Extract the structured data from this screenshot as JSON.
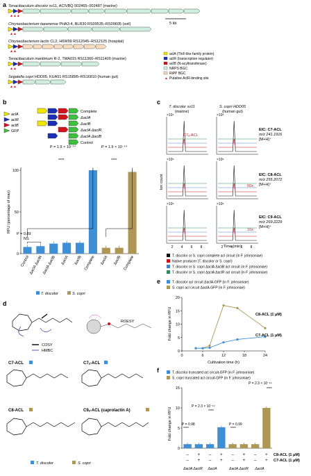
{
  "panel_labels": {
    "a": "a",
    "b": "b",
    "c": "c",
    "d": "d",
    "e": "e",
    "f": "f"
  },
  "panel_a": {
    "strains": [
      {
        "name": "Tenacibaculum discolor",
        "rest": " sv11, ACIVBQ 002465–002487 (marine)"
      },
      {
        "name": "Chryseobacterium taeanense",
        "rest": " PHA3-4, BLR30 RS09535–RS09605 (soil)"
      },
      {
        "name": "Chryseobacterium lactis",
        "rest": " CL2, H6W99 RS12045–RS12125 (hospital)"
      },
      {
        "name": "Tenacibaculum maritimum",
        "rest": " R-2, TMA015 RS11360–RS11400 (marine)"
      },
      {
        "name": "Segatella copri",
        "rest": " HDD05, KUA51 RS15895–RS16810 (human gut)"
      }
    ],
    "scale": "5 kb",
    "legend": [
      {
        "text": "aclA (ThiF-like family protein)",
        "color": "#f2e600"
      },
      {
        "text": "aclR (transcription regulator)",
        "color": "#1a2fb5"
      },
      {
        "text": "aclB (N-acyltransferase)",
        "color": "#d0141e"
      },
      {
        "text": "NRPS BGC",
        "color": "#cfeedd"
      },
      {
        "text": "RiPP BGC",
        "color": "#f6dcc0"
      },
      {
        "text": "Putative AclR-binding site",
        "color": "#d0141e"
      }
    ]
  },
  "panel_b": {
    "gene_legend": [
      "aclA",
      "aclR",
      "aclB",
      "GFP"
    ],
    "constructs": [
      "Complete",
      "ΔaclA",
      "ΔaclB",
      "ΔaclA ΔaclR",
      "ΔaclA ΔaclB",
      "Control"
    ],
    "ylabel": "RFU (percentage of max)",
    "p1": "P = 1.9 × 10⁻¹⁴",
    "p2": "P = 1.9 × 10⁻¹⁴",
    "p3": "P = 0.89",
    "sig": "****",
    "ns": "NS",
    "series": [
      "T. discolor",
      "S. copri"
    ],
    "chart_data": {
      "type": "bar",
      "categories": [
        "Control",
        "ΔaclA ΔaclR",
        "ΔaclA ΔaclB",
        "ΔaclA",
        "ΔaclB",
        "Complete",
        "ΔaclA",
        "ΔaclB",
        "Complete"
      ],
      "values": [
        8,
        9,
        12,
        13,
        13,
        100,
        7,
        7,
        98
      ],
      "groups": [
        "T. discolor",
        "T. discolor",
        "T. discolor",
        "T. discolor",
        "T. discolor",
        "T. discolor",
        "S. copri",
        "S. copri",
        "S. copri"
      ],
      "ylim": [
        0,
        100
      ],
      "yticks": [
        0,
        50,
        100
      ]
    }
  },
  "panel_c": {
    "col1_title": "T. discolor sv11",
    "col1_sub": "(marine)",
    "col2_title": "S. copri HDD05",
    "col2_sub": "(human gut)",
    "ylabel": "Ion count",
    "xlabel": "Time (min)",
    "xticks": [
      "2",
      "4",
      "6",
      "8"
    ],
    "row_scales": [
      [
        "×10⁴",
        "×10⁶"
      ],
      [
        "×10⁵",
        "×10⁶"
      ],
      [
        "×10⁵",
        "×10⁶"
      ]
    ],
    "eic": [
      {
        "name": "EIC: C7-ACL",
        "mz": "m/z 241.1916",
        "ion": "[M+H]⁺"
      },
      {
        "name": "EIC: C8-ACL",
        "mz": "m/z 255.2072",
        "ion": "[M+H]⁺"
      },
      {
        "name": "EIC: C9-ACL",
        "mz": "m/z 269.2229",
        "ion": "[M+H]⁺"
      }
    ],
    "annot_c7": "C7ₐ-ACL",
    "annot_50x": "50x",
    "annot_10x": "10x",
    "legend": [
      {
        "text": "T. discolor or S. copri complete acl circuit (in F. johnsoniae)",
        "color": "#111111"
      },
      {
        "text": "Native producer (T. discolor or S. copri)",
        "color": "#d0141e"
      },
      {
        "text": "T. discolor or S. copri ΔaclA ΔaclB acl circuit (in F. johnsoniae)",
        "color": "#4a7fc9"
      },
      {
        "text": "T. discolor or S. copri ΔaclA ΔaclR acl circuit (in F. johnsoniae)",
        "color": "#2e8b57"
      }
    ]
  },
  "panel_d": {
    "cosy": "COSY",
    "hmbc": "HMBC",
    "roesy": "ROESY",
    "compounds": [
      "C7-ACL",
      "C7ₐ-ACL",
      "C8-ACL",
      "C9ₐ-ACL (caprolactin A)"
    ],
    "legend": [
      "T. discolor",
      "S. copri"
    ]
  },
  "panel_e": {
    "legend": [
      {
        "text": "T. discolor acl circuit ΔaclA-GFP (in F. johnsoniae)",
        "color": "#3f8fd6"
      },
      {
        "text": "S. copri acl circuit ΔaclA-GFP (in F. johnsoniae)",
        "color": "#b09655"
      }
    ],
    "ylabel": "Fold change in RFU",
    "xlabel": "Cultivation time (h)",
    "label_c8": "C8-ACL (1 μM)",
    "label_c7": "C7-ACL (1 μM)",
    "chart_data": {
      "type": "line",
      "x": [
        4,
        6,
        8,
        12,
        16,
        24
      ],
      "series": [
        {
          "name": "S. copri acl circuit ΔaclA-GFP (in F. johnsoniae)",
          "values": [
            1,
            1,
            2,
            17,
            16,
            8.5
          ]
        },
        {
          "name": "T. discolor acl circuit ΔaclA-GFP (in F. johnsoniae)",
          "values": [
            1,
            1,
            1.2,
            3.2,
            4.3,
            5.3
          ]
        }
      ],
      "xlim": [
        0,
        24
      ],
      "ylim": [
        0,
        20
      ],
      "xticks": [
        0,
        6,
        12,
        18,
        24
      ],
      "yticks": [
        0,
        5,
        10,
        15,
        20
      ]
    }
  },
  "panel_f": {
    "legend": [
      {
        "text": "T. discolor truncated acl circuit-GFP (in F. johnsoniae)",
        "color": "#3f8fd6"
      },
      {
        "text": "S. copri truncated acl circuit-GFP (in F. johnsoniae)",
        "color": "#b09655"
      }
    ],
    "ylabel": "Fold change in RFU",
    "p1": "P = 0.98",
    "p2": "P = 2.3 × 10⁻¹⁴",
    "p3": "P = 0.99",
    "p4": "P = 2.3 × 10⁻¹⁴",
    "row_c8": "C8-ACL (1 μM)",
    "row_c7": "C7-ACL (1 μM)",
    "signs": [
      "–",
      "+",
      "–",
      "+",
      "–",
      "+",
      "–",
      "+"
    ],
    "group_labels": [
      "ΔaclA ΔaclR",
      "ΔaclA",
      "ΔaclA ΔaclR",
      "ΔaclA"
    ],
    "chart_data": {
      "type": "bar",
      "categories": [
        "ΔaclA ΔaclR –",
        "ΔaclA ΔaclR +",
        "ΔaclA –",
        "ΔaclA +",
        "ΔaclA ΔaclR –",
        "ΔaclA ΔaclR +",
        "ΔaclA –",
        "ΔaclA +"
      ],
      "values": [
        1,
        1,
        1,
        5.2,
        1,
        1,
        1,
        10
      ],
      "groups": [
        "T. discolor",
        "T. discolor",
        "T. discolor",
        "T. discolor",
        "S. copri",
        "S. copri",
        "S. copri",
        "S. copri"
      ],
      "ylim": [
        0,
        15
      ],
      "yticks": [
        0,
        5,
        10,
        15
      ]
    }
  }
}
